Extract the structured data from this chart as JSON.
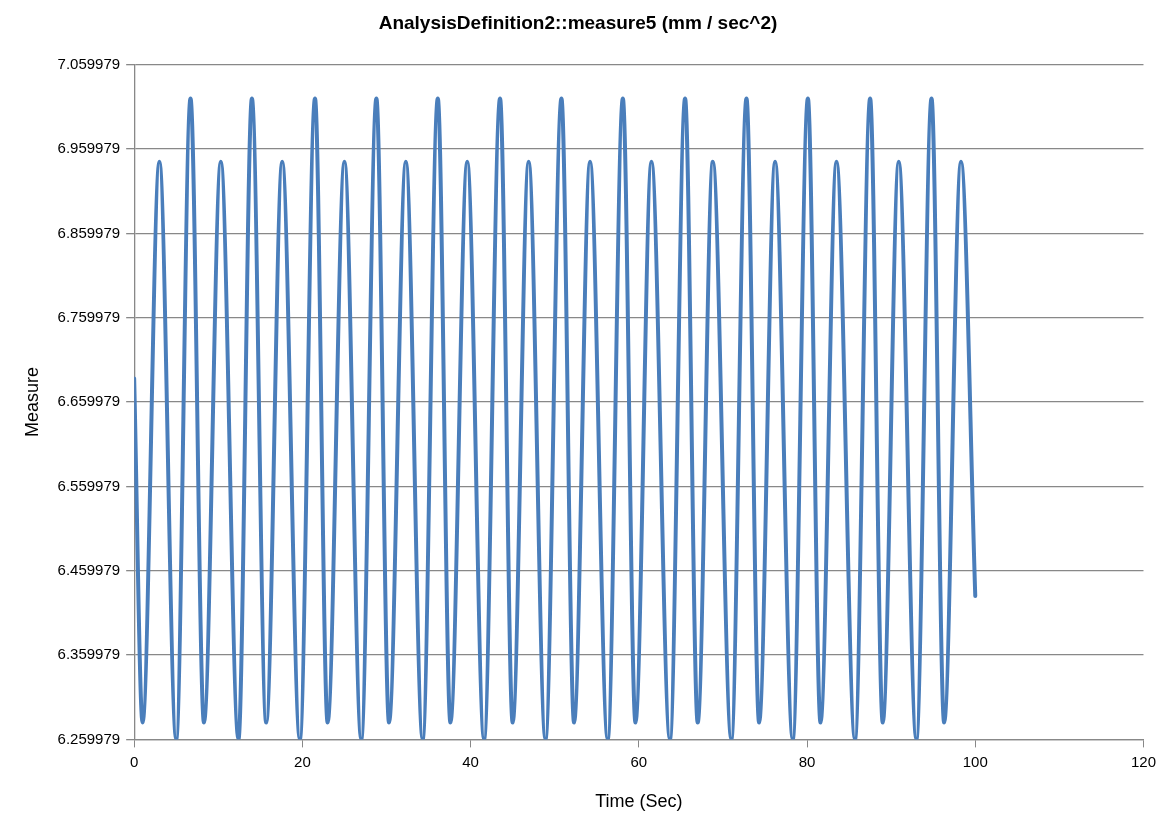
{
  "chart_data": {
    "type": "line",
    "title": "AnalysisDefinition2::measure5 (mm / sec^2)",
    "xlabel": "Time (Sec)",
    "ylabel": "Measure",
    "xlim": [
      0,
      120
    ],
    "xticks": [
      0,
      20,
      40,
      60,
      80,
      100,
      120
    ],
    "ylim": [
      6.259979,
      7.059979
    ],
    "yticks": [
      6.259979,
      6.359979,
      6.459979,
      6.559979,
      6.659979,
      6.759979,
      6.859979,
      6.959979,
      7.059979
    ],
    "grid": "y",
    "legend": false,
    "marker": "none",
    "line_style": "solid",
    "series": [
      {
        "color": "#4a7ebb",
        "x": [
          0,
          1.0,
          3.0,
          5.0,
          6.7,
          8.3,
          10.3,
          12.4,
          14.0,
          15.7,
          17.6,
          19.7,
          21.5,
          23.0,
          25.0,
          27.0,
          28.8,
          30.3,
          32.3,
          34.3,
          36.1,
          37.6,
          39.6,
          41.6,
          43.5,
          45.0,
          46.9,
          48.9,
          50.8,
          52.3,
          54.2,
          56.3,
          58.1,
          59.6,
          61.5,
          63.7,
          65.5,
          67.0,
          68.8,
          71.0,
          72.8,
          74.3,
          76.2,
          78.3,
          80.1,
          81.6,
          83.5,
          85.7,
          87.5,
          89.0,
          90.9,
          93.0,
          94.8,
          96.3,
          98.3,
          100
        ],
        "values": [
          6.688,
          6.28,
          6.945,
          6.26,
          7.02,
          6.28,
          6.945,
          6.26,
          7.02,
          6.28,
          6.945,
          6.26,
          7.02,
          6.28,
          6.945,
          6.26,
          7.02,
          6.28,
          6.945,
          6.26,
          7.02,
          6.28,
          6.945,
          6.26,
          7.02,
          6.28,
          6.945,
          6.26,
          7.02,
          6.28,
          6.945,
          6.26,
          7.02,
          6.28,
          6.945,
          6.26,
          7.02,
          6.28,
          6.945,
          6.26,
          7.02,
          6.28,
          6.945,
          6.26,
          7.02,
          6.28,
          6.945,
          6.26,
          7.02,
          6.28,
          6.945,
          6.26,
          7.02,
          6.28,
          6.945,
          6.43
        ]
      }
    ]
  }
}
